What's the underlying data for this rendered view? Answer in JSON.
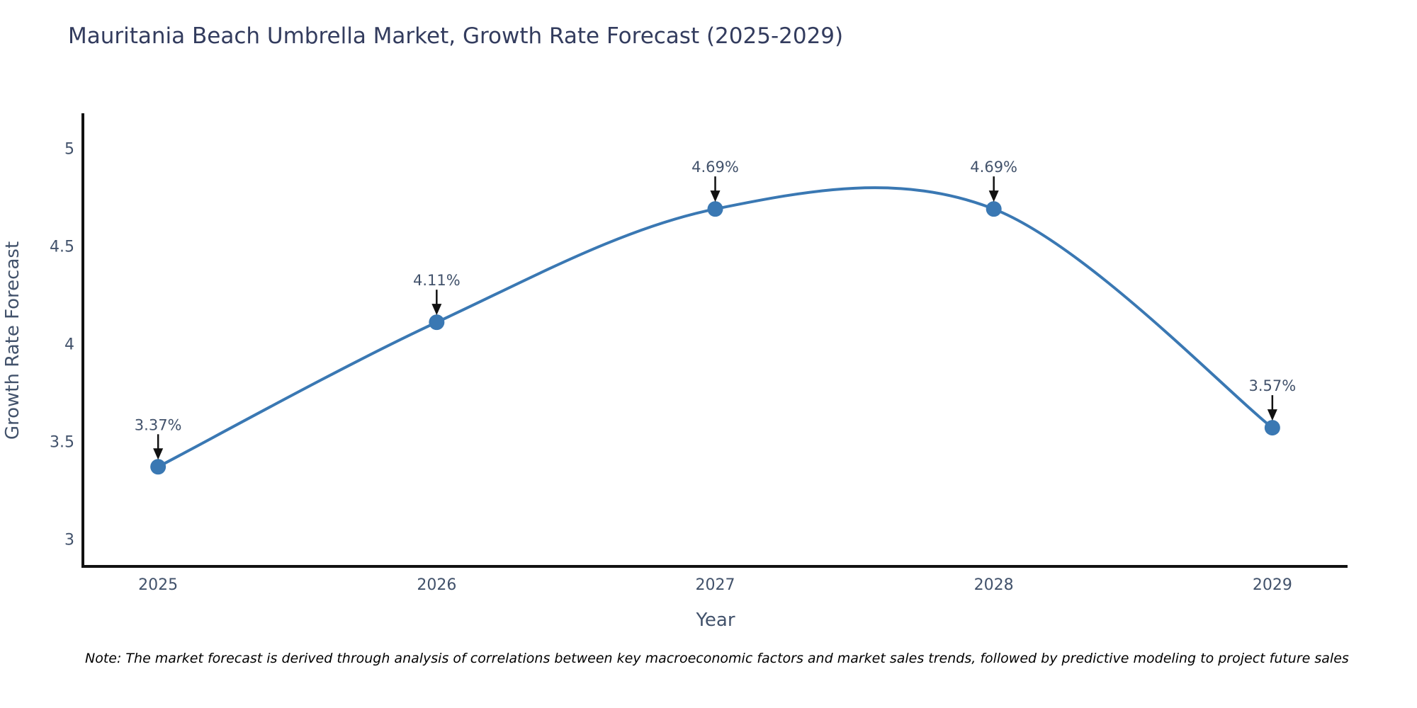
{
  "title": "Mauritania Beach Umbrella Market, Growth Rate Forecast (2025-2029)",
  "note": "Note: The market forecast is derived through analysis of correlations between key macroeconomic factors and market sales trends, followed by predictive modeling to project future sales",
  "chart_data": {
    "type": "line",
    "title": "Mauritania Beach Umbrella Market, Growth Rate Forecast (2025-2029)",
    "xlabel": "Year",
    "ylabel": "Growth Rate Forecast",
    "categories": [
      "2025",
      "2026",
      "2027",
      "2028",
      "2029"
    ],
    "x": [
      2025,
      2026,
      2027,
      2028,
      2029
    ],
    "values": [
      3.37,
      4.11,
      4.69,
      4.69,
      3.57
    ],
    "point_labels": [
      "3.37%",
      "4.11%",
      "4.69%",
      "4.69%",
      "3.57%"
    ],
    "y_ticks": [
      3,
      3.5,
      4,
      4.5,
      5
    ],
    "xlim": [
      2024.73,
      2029.27
    ],
    "ylim": [
      2.86,
      5.18
    ],
    "grid": false,
    "legend_position": "none",
    "line_shape": "spline",
    "annotation_style": "label-with-down-arrow",
    "colors": {
      "line": "#3a78b3",
      "marker": "#3a78b3",
      "axis": "#111111",
      "arrow": "#111111",
      "title_text": "#333c5e",
      "tick_text": "#42526b",
      "note_text": "#000000"
    }
  }
}
